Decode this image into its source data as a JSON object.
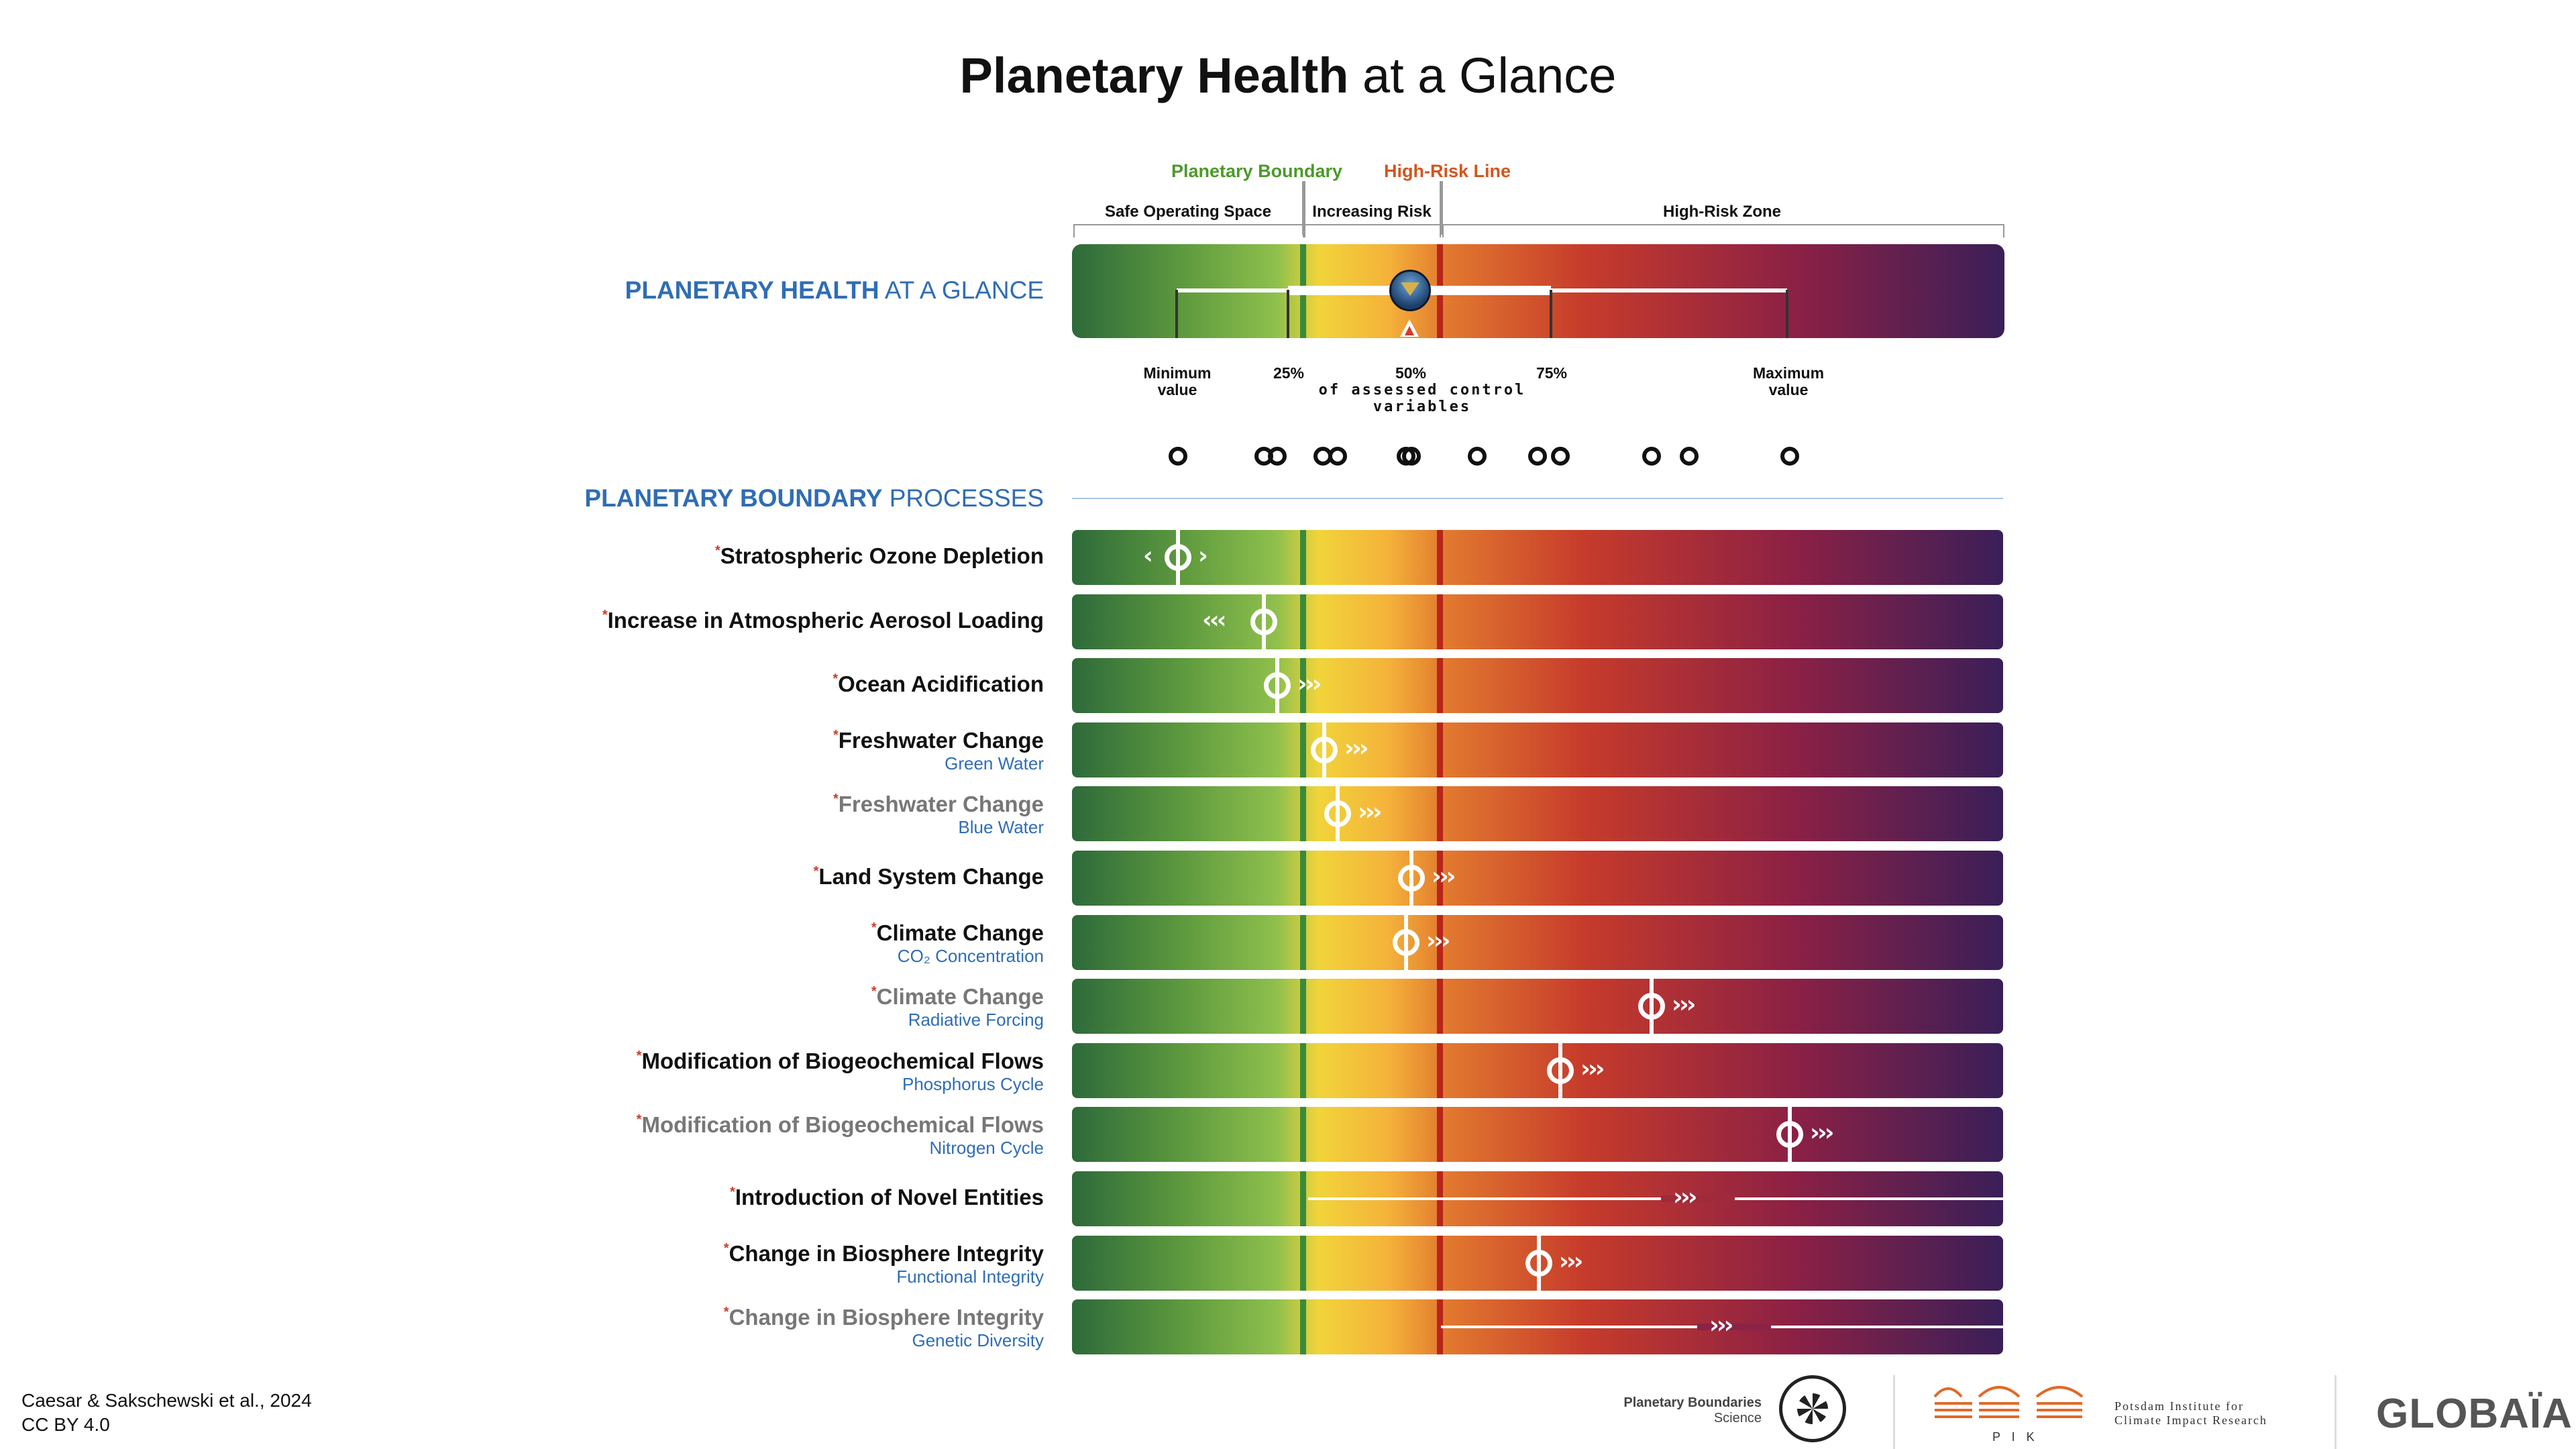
{
  "title_bold": "Planetary Health",
  "title_rest": " at a Glance",
  "legend": {
    "planetary_boundary": "Planetary Boundary",
    "high_risk_line": "High-Risk Line",
    "safe": "Safe Operating Space",
    "increasing": "Increasing Risk",
    "high_risk_zone": "High-Risk Zone",
    "pb_color": "#4c9a2a",
    "hr_color": "#d2561e"
  },
  "glance": {
    "label_bold": "PLANETARY HEALTH",
    "label_rest": " AT A GLANCE",
    "ticks": {
      "min": "Minimum\nvalue",
      "p25": "25%",
      "p50": "50%",
      "p75": "75%",
      "max": "Maximum\nvalue",
      "caption": "of assessed control variables"
    }
  },
  "processes_header_bold": "PLANETARY BOUNDARY",
  "processes_header_rest": " PROCESSES",
  "processes": [
    {
      "name": "Stratospheric Ozone Depletion",
      "sub": "",
      "gray": false,
      "direction": "both"
    },
    {
      "name": "Increase in Atmospheric Aerosol Loading",
      "sub": "",
      "gray": false,
      "direction": "left"
    },
    {
      "name": "Ocean Acidification",
      "sub": "",
      "gray": false,
      "direction": "right"
    },
    {
      "name": "Freshwater Change",
      "sub": "Green Water",
      "gray": false,
      "direction": "right"
    },
    {
      "name": "Freshwater Change",
      "sub": "Blue Water",
      "gray": true,
      "direction": "right"
    },
    {
      "name": "Land System Change",
      "sub": "",
      "gray": false,
      "direction": "right"
    },
    {
      "name": "Climate Change",
      "sub": "CO₂ Concentration",
      "gray": false,
      "direction": "right"
    },
    {
      "name": "Climate Change",
      "sub": "Radiative Forcing",
      "gray": true,
      "direction": "right"
    },
    {
      "name": "Modification of Biogeochemical Flows",
      "sub": "Phosphorus Cycle",
      "gray": false,
      "direction": "right"
    },
    {
      "name": "Modification of Biogeochemical Flows",
      "sub": "Nitrogen Cycle",
      "gray": true,
      "direction": "right"
    },
    {
      "name": "Introduction of Novel Entities",
      "sub": "",
      "gray": false,
      "direction": "right"
    },
    {
      "name": "Change in Biosphere Integrity",
      "sub": "Functional Integrity",
      "gray": false,
      "direction": "right"
    },
    {
      "name": "Change in Biosphere Integrity",
      "sub": "Genetic Diversity",
      "gray": true,
      "direction": "right"
    }
  ],
  "footer": {
    "citation": "Caesar & Sakschewski et al., 2024",
    "license": "CC BY 4.0",
    "pbs_line1": "Planetary Boundaries",
    "pbs_line2": "Science",
    "pik_short": "P I K",
    "pik_line1": "Potsdam Institute for",
    "pik_line2": "Climate Impact Research",
    "globaia": "GLOBAÏA"
  }
}
